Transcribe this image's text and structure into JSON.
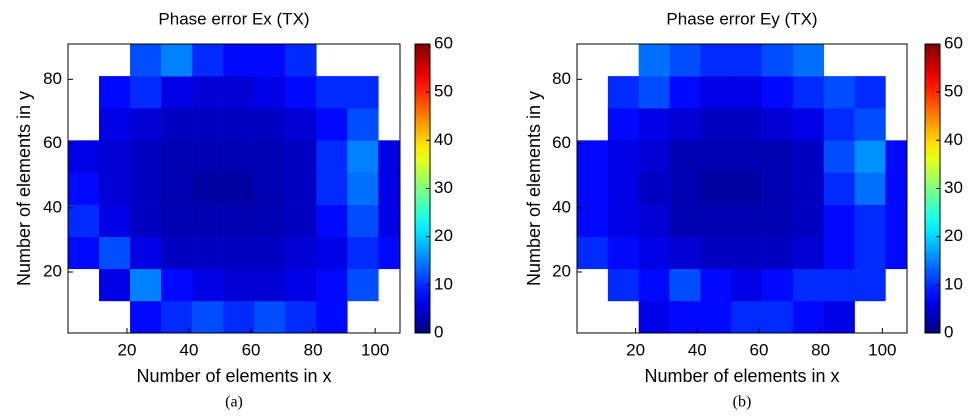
{
  "chart_data": [
    {
      "type": "heatmap",
      "title": "Phase error Ex (TX)",
      "xlabel": "Number of elements in x",
      "ylabel": "Number of elements in y",
      "caption": "(a)",
      "xlim": [
        1,
        108
      ],
      "ylim": [
        1,
        91
      ],
      "xticks": [
        20,
        40,
        60,
        80,
        100
      ],
      "yticks": [
        20,
        40,
        60,
        80
      ],
      "xbins": [
        1,
        11,
        21,
        31,
        41,
        51,
        61,
        71,
        81,
        91,
        101,
        108
      ],
      "ybins": [
        1,
        11,
        21,
        31,
        41,
        51,
        61,
        71,
        81,
        91
      ],
      "colormap": "jet",
      "clim": [
        0,
        60
      ],
      "cticks": [
        0,
        10,
        20,
        30,
        40,
        50,
        60
      ],
      "z": [
        [
          null,
          null,
          8,
          10,
          12,
          10,
          12,
          10,
          8,
          null,
          null
        ],
        [
          null,
          6,
          15,
          8,
          6,
          5,
          5,
          6,
          8,
          12,
          null
        ],
        [
          8,
          12,
          6,
          4,
          4,
          4,
          4,
          5,
          6,
          10,
          8
        ],
        [
          10,
          6,
          4,
          3,
          3,
          3,
          3,
          4,
          8,
          12,
          6
        ],
        [
          8,
          5,
          4,
          3,
          2,
          2,
          3,
          4,
          10,
          14,
          6
        ],
        [
          6,
          5,
          4,
          3,
          3,
          3,
          3,
          4,
          10,
          15,
          6
        ],
        [
          null,
          6,
          5,
          4,
          4,
          4,
          4,
          5,
          8,
          12,
          null
        ],
        [
          null,
          8,
          10,
          6,
          5,
          5,
          6,
          8,
          10,
          10,
          null
        ],
        [
          null,
          null,
          12,
          15,
          10,
          8,
          8,
          10,
          null,
          null,
          null
        ]
      ]
    },
    {
      "type": "heatmap",
      "title": "Phase error Ey (TX)",
      "xlabel": "Number of elements in x",
      "ylabel": "Number of elements in y",
      "caption": "(b)",
      "xlim": [
        1,
        108
      ],
      "ylim": [
        1,
        91
      ],
      "xticks": [
        20,
        40,
        60,
        80,
        100
      ],
      "yticks": [
        20,
        40,
        60,
        80
      ],
      "xbins": [
        1,
        11,
        21,
        31,
        41,
        51,
        61,
        71,
        81,
        91,
        101,
        108
      ],
      "ybins": [
        1,
        11,
        21,
        31,
        41,
        51,
        61,
        71,
        81,
        91
      ],
      "colormap": "jet",
      "clim": [
        0,
        60
      ],
      "cticks": [
        0,
        10,
        20,
        30,
        40,
        50,
        60
      ],
      "z": [
        [
          null,
          null,
          6,
          8,
          8,
          10,
          10,
          8,
          6,
          null,
          null
        ],
        [
          null,
          10,
          8,
          12,
          8,
          6,
          8,
          10,
          10,
          10,
          null
        ],
        [
          10,
          8,
          6,
          5,
          4,
          4,
          4,
          5,
          8,
          10,
          8
        ],
        [
          8,
          6,
          5,
          3,
          3,
          3,
          3,
          4,
          8,
          10,
          8
        ],
        [
          8,
          6,
          4,
          3,
          2,
          2,
          3,
          4,
          10,
          14,
          8
        ],
        [
          8,
          6,
          5,
          3,
          3,
          3,
          3,
          4,
          12,
          16,
          8
        ],
        [
          null,
          8,
          6,
          5,
          4,
          4,
          5,
          6,
          10,
          12,
          null
        ],
        [
          null,
          10,
          12,
          8,
          6,
          6,
          8,
          10,
          12,
          10,
          null
        ],
        [
          null,
          null,
          14,
          12,
          10,
          10,
          12,
          14,
          null,
          null,
          null
        ]
      ]
    }
  ]
}
